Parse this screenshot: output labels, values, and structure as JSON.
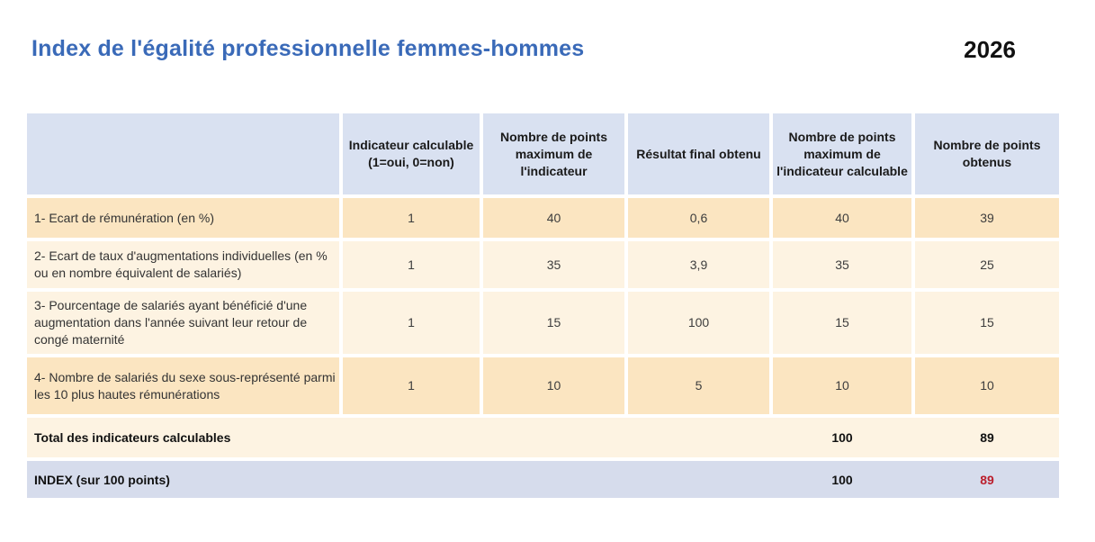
{
  "title": "Index de l'égalité professionnelle femmes-hommes",
  "year": "2026",
  "colors": {
    "title_blue": "#3a6ab8",
    "header_bg": "#d9e1f1",
    "row_tan": "#fbe5c1",
    "row_cream": "#fdf3e2",
    "index_bg": "#d6dcec",
    "value_red": "#bb1e2c"
  },
  "table": {
    "headers": [
      "",
      "Indicateur calculable (1=oui, 0=non)",
      "Nombre de points maximum de l'indicateur",
      "Résultat final obtenu",
      "Nombre de points maximum de l'indicateur calculable",
      "Nombre de points obtenus"
    ],
    "rows": [
      {
        "label": "1- Ecart de rémunération (en %)",
        "values": [
          "1",
          "40",
          "0,6",
          "40",
          "39"
        ]
      },
      {
        "label": "2- Ecart de taux d'augmentations individuelles (en % ou en nombre équivalent de salariés)",
        "values": [
          "1",
          "35",
          "3,9",
          "35",
          "25"
        ]
      },
      {
        "label": "3- Pourcentage de salariés ayant bénéficié d'une augmentation dans l'année suivant leur retour de congé maternité",
        "values": [
          "1",
          "15",
          "100",
          "15",
          "15"
        ]
      },
      {
        "label": "4- Nombre de salariés du sexe sous-représenté parmi les 10 plus hautes rémunérations",
        "values": [
          "1",
          "10",
          "5",
          "10",
          "10"
        ]
      }
    ],
    "total_row": {
      "label": "Total des indicateurs calculables",
      "max_points": "100",
      "obtained": "89"
    },
    "index_row": {
      "label": "INDEX (sur 100 points)",
      "max_points": "100",
      "obtained": "89"
    }
  }
}
